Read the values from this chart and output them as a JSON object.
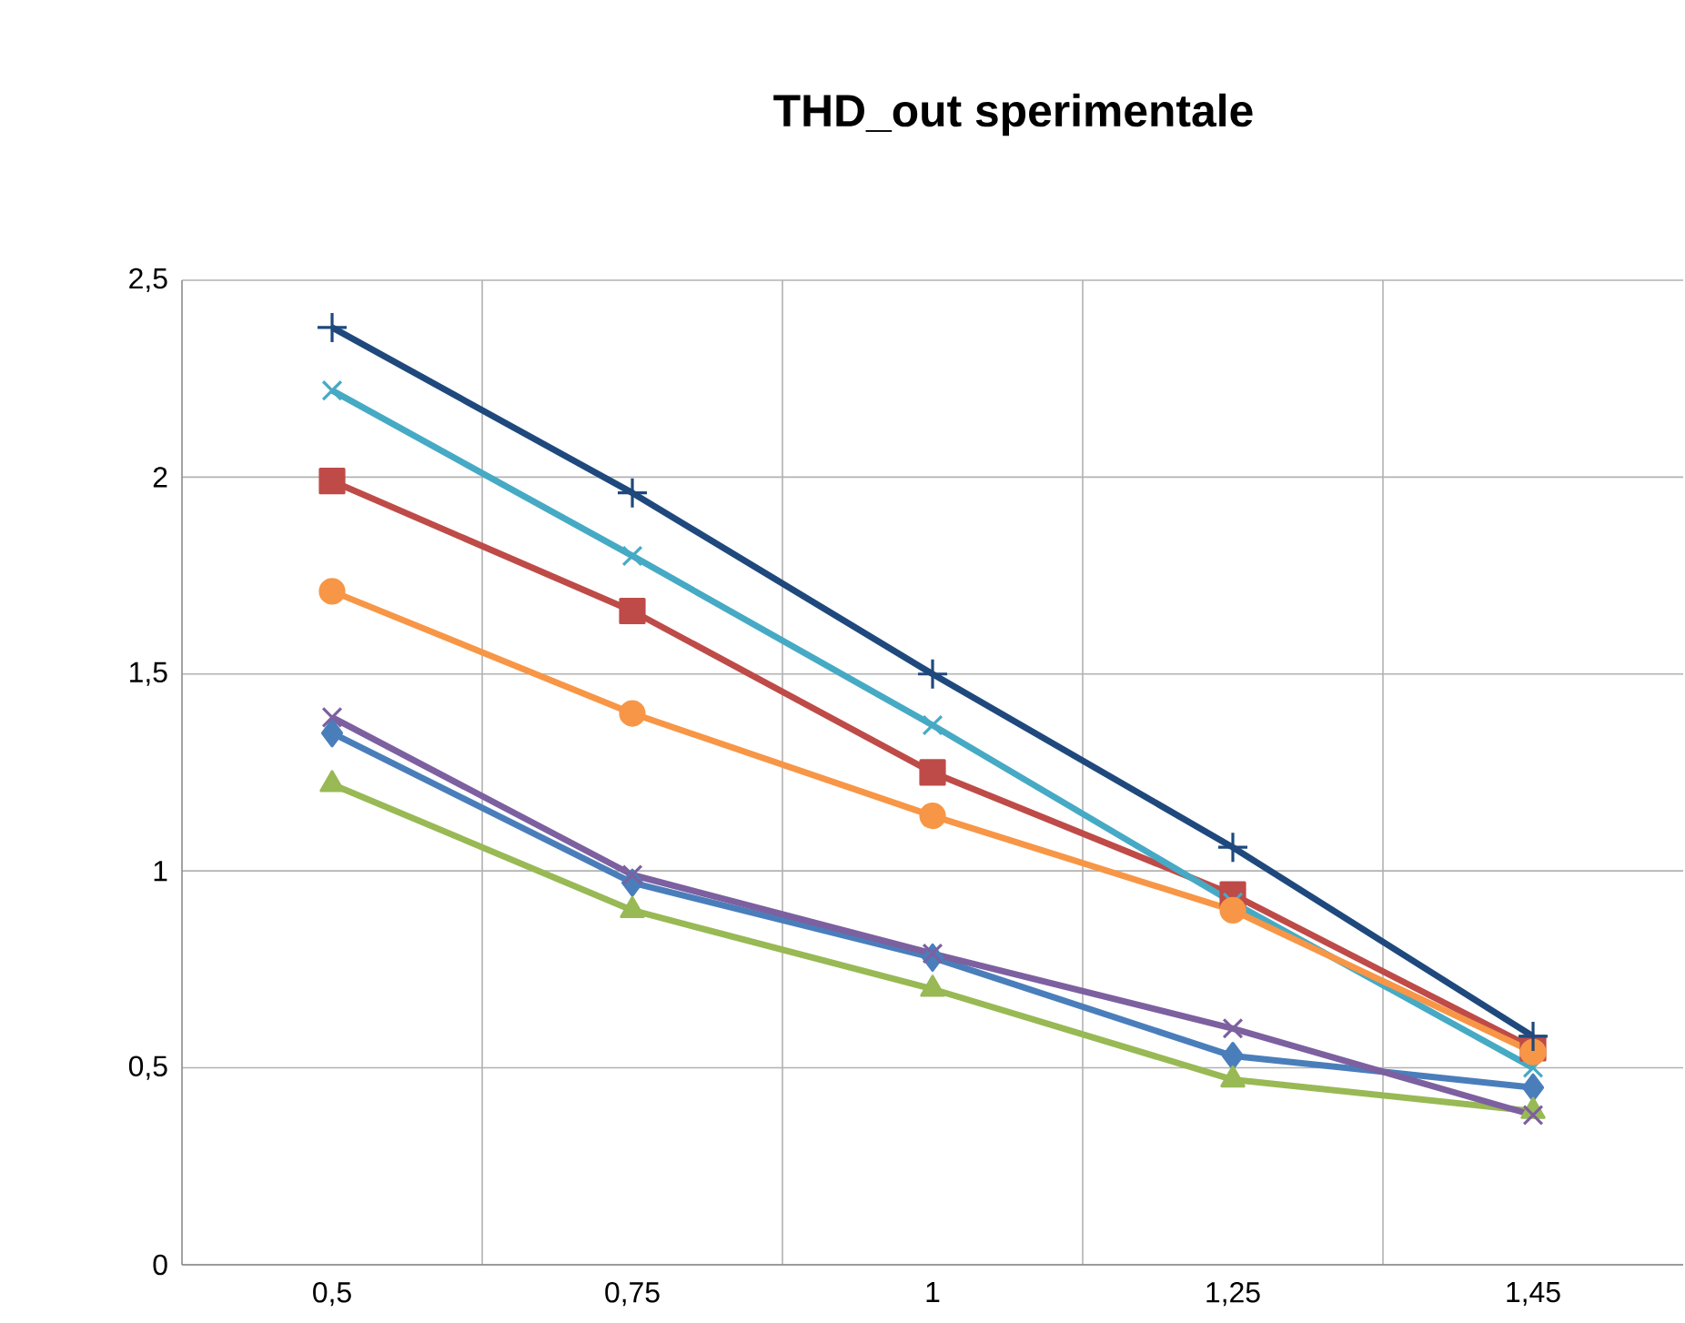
{
  "chart_data": {
    "type": "line",
    "title": "THD_out sperimentale",
    "categories": [
      "0,5",
      "0,75",
      "1",
      "1,25",
      "1,45"
    ],
    "series": [
      {
        "color": "#4a7ebb",
        "marker": "diamond",
        "values": [
          1.35,
          0.97,
          0.78,
          0.53,
          0.45
        ]
      },
      {
        "color": "#be4b48",
        "marker": "square",
        "values": [
          1.99,
          1.66,
          1.25,
          0.94,
          0.55
        ]
      },
      {
        "color": "#98b954",
        "marker": "triangle",
        "values": [
          1.22,
          0.9,
          0.7,
          0.47,
          0.39
        ]
      },
      {
        "color": "#7d60a0",
        "marker": "cross",
        "values": [
          1.39,
          0.99,
          0.79,
          0.6,
          0.38
        ]
      },
      {
        "color": "#46aac5",
        "marker": "cross",
        "values": [
          2.22,
          1.8,
          1.37,
          0.92,
          0.5
        ]
      },
      {
        "color": "#f79646",
        "marker": "circle",
        "values": [
          1.71,
          1.4,
          1.14,
          0.9,
          0.54
        ]
      },
      {
        "color": "#1f497d",
        "marker": "plus",
        "values": [
          2.38,
          1.96,
          1.5,
          1.06,
          0.58
        ]
      }
    ],
    "ylim": [
      0,
      2.5
    ],
    "yticks": [
      0,
      {
        "value": 0.5,
        "label": "0,5"
      },
      1,
      {
        "value": 1.5,
        "label": "1,5"
      },
      2,
      {
        "value": 2.5,
        "label": "2,5"
      }
    ],
    "grid": true,
    "line_style": "solid"
  }
}
